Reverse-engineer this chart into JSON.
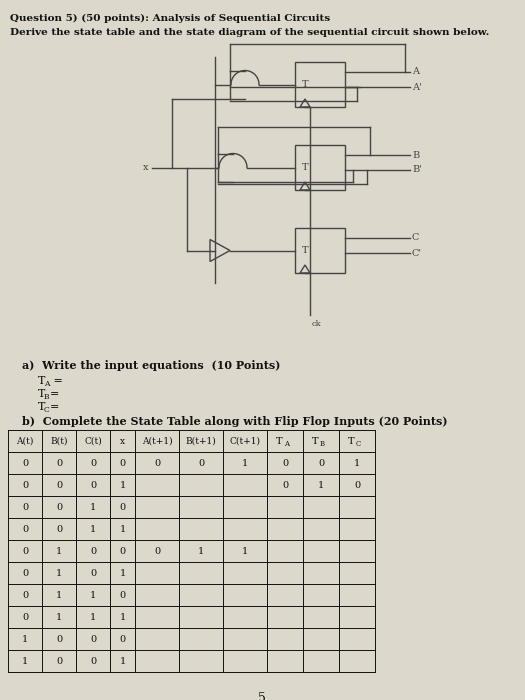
{
  "title_line1": "Question 5) (50 points): Analysis of Sequential Circuits",
  "title_line2": "Derive the state table and the state diagram of the sequential circuit shown below.",
  "part_a_title": "a)  Write the input equations  (10 Points)",
  "part_b_title": "b)  Complete the State Table along with Flip Flop Inputs (20 Points)",
  "table_headers": [
    "A(t)",
    "B(t)",
    "C(t)",
    "x",
    "A(t+1)",
    "B(t+1)",
    "C(t+1)",
    "TA",
    "TB",
    "TC"
  ],
  "table_data": [
    [
      "0",
      "0",
      "0",
      "0",
      "0",
      "0",
      "1",
      "0",
      "0",
      "1"
    ],
    [
      "0",
      "0",
      "0",
      "1",
      "",
      "",
      "",
      "0",
      "1",
      "0"
    ],
    [
      "0",
      "0",
      "1",
      "0",
      "",
      "",
      "",
      "",
      "",
      ""
    ],
    [
      "0",
      "0",
      "1",
      "1",
      "",
      "",
      "",
      "",
      "",
      ""
    ],
    [
      "0",
      "1",
      "0",
      "0",
      "0",
      "1",
      "1",
      "",
      "",
      ""
    ],
    [
      "0",
      "1",
      "0",
      "1",
      "",
      "",
      "",
      "",
      "",
      ""
    ],
    [
      "0",
      "1",
      "1",
      "0",
      "",
      "",
      "",
      "",
      "",
      ""
    ],
    [
      "0",
      "1",
      "1",
      "1",
      "",
      "",
      "",
      "",
      "",
      ""
    ],
    [
      "1",
      "0",
      "0",
      "0",
      "",
      "",
      "",
      "",
      "",
      ""
    ],
    [
      "1",
      "0",
      "0",
      "1",
      "",
      "",
      "",
      "",
      "",
      ""
    ]
  ],
  "page_number": "5",
  "bg_color": "#ddd8cc",
  "text_color": "#111111",
  "circuit_color": "#444444"
}
